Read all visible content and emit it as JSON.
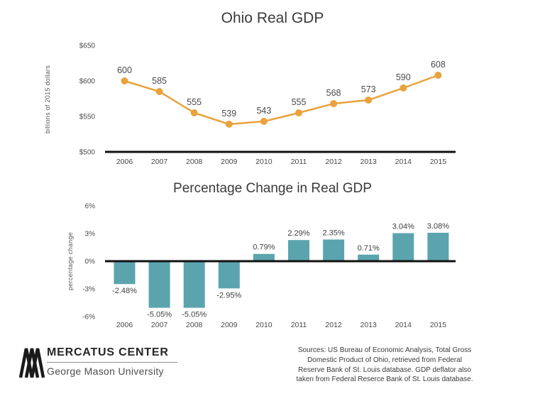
{
  "chart_data": [
    {
      "type": "line",
      "title": "Ohio Real GDP",
      "ylabel": "billions of 2015 dollars",
      "xlabel": "",
      "categories": [
        "2006",
        "2007",
        "2008",
        "2009",
        "2010",
        "2011",
        "2012",
        "2013",
        "2014",
        "2015"
      ],
      "values": [
        600,
        585,
        555,
        539,
        543,
        555,
        568,
        573,
        590,
        608
      ],
      "data_labels": [
        "600",
        "585",
        "555",
        "539",
        "543",
        "555",
        "568",
        "573",
        "590",
        "608"
      ],
      "ylim": [
        500,
        650
      ],
      "yticks": [
        "$500",
        "$550",
        "$600",
        "$650"
      ],
      "ytick_values": [
        500,
        550,
        600,
        650
      ],
      "line_color": "#E9A23C",
      "grid": false,
      "legend": "none"
    },
    {
      "type": "bar",
      "title": "Percentage Change in Real GDP",
      "ylabel": "percentage change",
      "xlabel": "",
      "categories": [
        "2006",
        "2007",
        "2008",
        "2009",
        "2010",
        "2011",
        "2012",
        "2013",
        "2014",
        "2015"
      ],
      "values": [
        -2.48,
        -5.05,
        -5.05,
        -2.95,
        0.79,
        2.29,
        2.35,
        0.71,
        3.04,
        3.08
      ],
      "data_labels": [
        "-2.48%",
        "-5.05%",
        "-5.05%",
        "-2.95%",
        "0.79%",
        "2.29%",
        "2.35%",
        "0.71%",
        "3.04%",
        "3.08%"
      ],
      "ylim": [
        -6,
        6
      ],
      "yticks": [
        "-6%",
        "-3%",
        "0%",
        "3%",
        "6%"
      ],
      "ytick_values": [
        -6,
        -3,
        0,
        3,
        6
      ],
      "bar_color": "#5BA4AE",
      "grid": false,
      "legend": "none"
    }
  ],
  "footer": {
    "logo_title": "MERCATUS CENTER",
    "logo_subtitle": "George Mason University",
    "sources_lines": [
      "Sources: US Bureau of Economic Analysis, Total Gross",
      "Domestic Product of Ohio, retrieved from Federal",
      "Reserve Bank of St. Louis database. GDP deflator also",
      "taken from Federal Reserce Bank of St. Louis database."
    ]
  }
}
